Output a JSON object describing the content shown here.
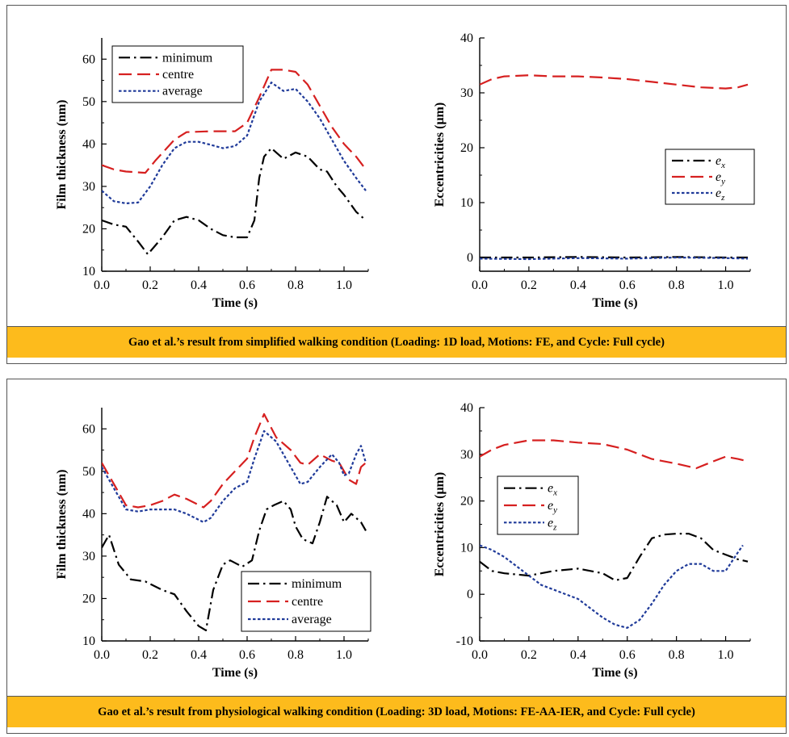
{
  "colors": {
    "caption_bg": "#fdbb1c",
    "minimum": "#000000",
    "centre": "#d62020",
    "average": "#1f3a99"
  },
  "top_caption": "Gao et al.’s result from simplified walking condition (Loading: 1D load, Motions: FE, and Cycle: Full cycle)",
  "bottom_caption": "Gao et al.’s result from physiological walking condition (Loading: 3D load, Motions: FE-AA-IER, and Cycle: Full cycle)",
  "chart_data": [
    {
      "id": "top-left",
      "type": "line",
      "xlabel": "Time (s)",
      "ylabel": "Film thickness (nm)",
      "xlim": [
        0.0,
        1.1
      ],
      "ylim": [
        10,
        65
      ],
      "xticks": [
        "0.0",
        "0.2",
        "0.4",
        "0.6",
        "0.8",
        "1.0"
      ],
      "yticks": [
        "10",
        "20",
        "30",
        "40",
        "50",
        "60"
      ],
      "legend_position": "top-left",
      "series": [
        {
          "name": "minimum",
          "style": "dashdot",
          "color": "#000000",
          "points": [
            [
              0.0,
              22
            ],
            [
              0.05,
              21
            ],
            [
              0.1,
              20.5
            ],
            [
              0.15,
              17
            ],
            [
              0.19,
              14
            ],
            [
              0.25,
              18
            ],
            [
              0.3,
              22
            ],
            [
              0.35,
              22.8
            ],
            [
              0.4,
              22
            ],
            [
              0.45,
              20
            ],
            [
              0.5,
              18.5
            ],
            [
              0.55,
              18
            ],
            [
              0.6,
              18
            ],
            [
              0.63,
              22
            ],
            [
              0.65,
              32
            ],
            [
              0.67,
              37
            ],
            [
              0.7,
              39
            ],
            [
              0.75,
              36.5
            ],
            [
              0.8,
              38
            ],
            [
              0.85,
              37
            ],
            [
              0.9,
              34
            ],
            [
              0.93,
              33.5
            ],
            [
              0.97,
              30
            ],
            [
              1.0,
              28
            ],
            [
              1.05,
              24
            ],
            [
              1.09,
              22
            ]
          ]
        },
        {
          "name": "centre",
          "style": "dashed",
          "color": "#d62020",
          "points": [
            [
              0.0,
              35
            ],
            [
              0.05,
              34
            ],
            [
              0.1,
              33.5
            ],
            [
              0.18,
              33.2
            ],
            [
              0.22,
              36
            ],
            [
              0.3,
              41
            ],
            [
              0.35,
              42.8
            ],
            [
              0.45,
              43
            ],
            [
              0.55,
              43
            ],
            [
              0.6,
              45
            ],
            [
              0.65,
              51
            ],
            [
              0.7,
              57.5
            ],
            [
              0.75,
              57.5
            ],
            [
              0.8,
              57
            ],
            [
              0.85,
              54
            ],
            [
              0.9,
              49
            ],
            [
              0.95,
              44
            ],
            [
              1.0,
              40
            ],
            [
              1.05,
              37
            ],
            [
              1.09,
              34
            ]
          ]
        },
        {
          "name": "average",
          "style": "dotted",
          "color": "#1f3a99",
          "points": [
            [
              0.0,
              29
            ],
            [
              0.05,
              26.5
            ],
            [
              0.1,
              26
            ],
            [
              0.15,
              26.2
            ],
            [
              0.2,
              30
            ],
            [
              0.25,
              35
            ],
            [
              0.3,
              39
            ],
            [
              0.35,
              40.5
            ],
            [
              0.4,
              40.5
            ],
            [
              0.45,
              39.8
            ],
            [
              0.5,
              39
            ],
            [
              0.55,
              39.5
            ],
            [
              0.6,
              42
            ],
            [
              0.65,
              50
            ],
            [
              0.7,
              54.5
            ],
            [
              0.75,
              52.5
            ],
            [
              0.8,
              53
            ],
            [
              0.85,
              50
            ],
            [
              0.9,
              46
            ],
            [
              0.95,
              41
            ],
            [
              1.0,
              36
            ],
            [
              1.05,
              32
            ],
            [
              1.09,
              29
            ]
          ]
        }
      ]
    },
    {
      "id": "top-right",
      "type": "line",
      "xlabel": "Time (s)",
      "ylabel": "Eccentricities (μm)",
      "xlim": [
        0.0,
        1.1
      ],
      "ylim": [
        -2.5,
        40
      ],
      "xticks": [
        "0.0",
        "0.2",
        "0.4",
        "0.6",
        "0.8",
        "1.0"
      ],
      "yticks": [
        "0",
        "10",
        "20",
        "30",
        "40"
      ],
      "legend_position": "center-right",
      "series": [
        {
          "name": "e_x",
          "style": "dashdot",
          "color": "#000000",
          "points": [
            [
              0.0,
              0
            ],
            [
              0.2,
              0
            ],
            [
              0.4,
              0.1
            ],
            [
              0.6,
              0
            ],
            [
              0.8,
              0.1
            ],
            [
              1.0,
              0
            ],
            [
              1.09,
              0
            ]
          ]
        },
        {
          "name": "e_y",
          "style": "dashed",
          "color": "#d62020",
          "points": [
            [
              0.0,
              31.5
            ],
            [
              0.05,
              32.5
            ],
            [
              0.1,
              33
            ],
            [
              0.2,
              33.2
            ],
            [
              0.3,
              33
            ],
            [
              0.4,
              33
            ],
            [
              0.5,
              32.8
            ],
            [
              0.6,
              32.5
            ],
            [
              0.7,
              32
            ],
            [
              0.8,
              31.5
            ],
            [
              0.9,
              31
            ],
            [
              1.0,
              30.8
            ],
            [
              1.05,
              31
            ],
            [
              1.09,
              31.5
            ]
          ]
        },
        {
          "name": "e_z",
          "style": "dotted",
          "color": "#1f3a99",
          "points": [
            [
              0.0,
              -0.2
            ],
            [
              0.2,
              -0.3
            ],
            [
              0.4,
              -0.1
            ],
            [
              0.6,
              -0.2
            ],
            [
              0.8,
              0
            ],
            [
              1.0,
              -0.1
            ],
            [
              1.09,
              -0.2
            ]
          ]
        }
      ]
    },
    {
      "id": "bottom-left",
      "type": "line",
      "xlabel": "Time (s)",
      "ylabel": "Film thickness (nm)",
      "xlim": [
        0.0,
        1.1
      ],
      "ylim": [
        10,
        65
      ],
      "xticks": [
        "0.0",
        "0.2",
        "0.4",
        "0.6",
        "0.8",
        "1.0"
      ],
      "yticks": [
        "10",
        "20",
        "30",
        "40",
        "50",
        "60"
      ],
      "legend_position": "bottom-right",
      "series": [
        {
          "name": "minimum",
          "style": "dashdot",
          "color": "#000000",
          "points": [
            [
              0.0,
              32
            ],
            [
              0.03,
              35
            ],
            [
              0.07,
              28
            ],
            [
              0.12,
              24.5
            ],
            [
              0.18,
              24
            ],
            [
              0.25,
              22
            ],
            [
              0.3,
              21
            ],
            [
              0.35,
              17
            ],
            [
              0.4,
              13.5
            ],
            [
              0.43,
              12.5
            ],
            [
              0.46,
              22
            ],
            [
              0.5,
              28
            ],
            [
              0.53,
              29
            ],
            [
              0.58,
              27.5
            ],
            [
              0.62,
              29
            ],
            [
              0.65,
              36
            ],
            [
              0.68,
              41
            ],
            [
              0.71,
              42
            ],
            [
              0.75,
              43
            ],
            [
              0.78,
              41
            ],
            [
              0.8,
              37
            ],
            [
              0.83,
              34
            ],
            [
              0.87,
              33
            ],
            [
              0.9,
              38
            ],
            [
              0.93,
              44
            ],
            [
              0.97,
              42
            ],
            [
              1.0,
              38
            ],
            [
              1.03,
              40
            ],
            [
              1.07,
              38
            ],
            [
              1.09,
              36
            ]
          ]
        },
        {
          "name": "centre",
          "style": "dashed",
          "color": "#d62020",
          "points": [
            [
              0.0,
              52
            ],
            [
              0.05,
              47
            ],
            [
              0.1,
              42
            ],
            [
              0.15,
              41.5
            ],
            [
              0.2,
              42
            ],
            [
              0.25,
              43
            ],
            [
              0.3,
              44.5
            ],
            [
              0.35,
              43.5
            ],
            [
              0.42,
              41.5
            ],
            [
              0.45,
              43
            ],
            [
              0.5,
              47
            ],
            [
              0.55,
              50
            ],
            [
              0.6,
              53
            ],
            [
              0.63,
              58
            ],
            [
              0.67,
              63.5
            ],
            [
              0.72,
              58
            ],
            [
              0.78,
              55
            ],
            [
              0.82,
              52
            ],
            [
              0.85,
              51.5
            ],
            [
              0.9,
              54
            ],
            [
              0.95,
              52.5
            ],
            [
              0.98,
              52
            ],
            [
              1.02,
              48
            ],
            [
              1.05,
              47
            ],
            [
              1.07,
              51
            ],
            [
              1.09,
              52
            ]
          ]
        },
        {
          "name": "average",
          "style": "dotted",
          "color": "#1f3a99",
          "points": [
            [
              0.0,
              51
            ],
            [
              0.05,
              46
            ],
            [
              0.1,
              41
            ],
            [
              0.15,
              40.5
            ],
            [
              0.2,
              41
            ],
            [
              0.25,
              41
            ],
            [
              0.3,
              41
            ],
            [
              0.35,
              40
            ],
            [
              0.42,
              38
            ],
            [
              0.45,
              39
            ],
            [
              0.5,
              43
            ],
            [
              0.55,
              46
            ],
            [
              0.6,
              47.5
            ],
            [
              0.63,
              53
            ],
            [
              0.67,
              59.5
            ],
            [
              0.72,
              57
            ],
            [
              0.78,
              51
            ],
            [
              0.82,
              47
            ],
            [
              0.85,
              47.5
            ],
            [
              0.9,
              51
            ],
            [
              0.95,
              54
            ],
            [
              0.98,
              52
            ],
            [
              1.0,
              49
            ],
            [
              1.02,
              49.5
            ],
            [
              1.05,
              54
            ],
            [
              1.07,
              56
            ],
            [
              1.09,
              52
            ]
          ]
        }
      ]
    },
    {
      "id": "bottom-right",
      "type": "line",
      "xlabel": "Time (s)",
      "ylabel": "Eccentricities (μm)",
      "xlim": [
        0.0,
        1.1
      ],
      "ylim": [
        -10,
        40
      ],
      "xticks": [
        "0.0",
        "0.2",
        "0.4",
        "0.6",
        "0.8",
        "1.0"
      ],
      "yticks": [
        "-10",
        "0",
        "10",
        "20",
        "30",
        "40"
      ],
      "legend_position": "center-left",
      "series": [
        {
          "name": "e_x",
          "style": "dashdot",
          "color": "#000000",
          "points": [
            [
              0.0,
              7
            ],
            [
              0.05,
              5
            ],
            [
              0.1,
              4.5
            ],
            [
              0.2,
              4
            ],
            [
              0.3,
              5
            ],
            [
              0.4,
              5.5
            ],
            [
              0.5,
              4.5
            ],
            [
              0.55,
              3
            ],
            [
              0.6,
              3.5
            ],
            [
              0.65,
              8
            ],
            [
              0.7,
              12
            ],
            [
              0.75,
              12.8
            ],
            [
              0.8,
              13
            ],
            [
              0.85,
              13
            ],
            [
              0.9,
              12
            ],
            [
              0.95,
              9.5
            ],
            [
              1.0,
              8.5
            ],
            [
              1.05,
              7.5
            ],
            [
              1.09,
              7
            ]
          ]
        },
        {
          "name": "e_y",
          "style": "dashed",
          "color": "#d62020",
          "points": [
            [
              0.0,
              29.5
            ],
            [
              0.05,
              31
            ],
            [
              0.1,
              32
            ],
            [
              0.2,
              33
            ],
            [
              0.3,
              33
            ],
            [
              0.4,
              32.5
            ],
            [
              0.5,
              32.2
            ],
            [
              0.6,
              31
            ],
            [
              0.7,
              29
            ],
            [
              0.8,
              28
            ],
            [
              0.88,
              27
            ],
            [
              0.95,
              28.5
            ],
            [
              1.0,
              29.5
            ],
            [
              1.05,
              29
            ],
            [
              1.09,
              28.5
            ]
          ]
        },
        {
          "name": "e_z",
          "style": "dotted",
          "color": "#1f3a99",
          "points": [
            [
              0.0,
              10.5
            ],
            [
              0.05,
              9.5
            ],
            [
              0.1,
              8
            ],
            [
              0.15,
              6
            ],
            [
              0.2,
              4
            ],
            [
              0.25,
              2
            ],
            [
              0.3,
              1
            ],
            [
              0.35,
              0
            ],
            [
              0.4,
              -1
            ],
            [
              0.45,
              -3
            ],
            [
              0.5,
              -5
            ],
            [
              0.55,
              -6.5
            ],
            [
              0.6,
              -7.2
            ],
            [
              0.65,
              -5.5
            ],
            [
              0.7,
              -2
            ],
            [
              0.75,
              2
            ],
            [
              0.8,
              5
            ],
            [
              0.85,
              6.5
            ],
            [
              0.9,
              6.5
            ],
            [
              0.95,
              5
            ],
            [
              1.0,
              5
            ],
            [
              1.05,
              9
            ],
            [
              1.07,
              10.5
            ]
          ]
        }
      ]
    }
  ]
}
